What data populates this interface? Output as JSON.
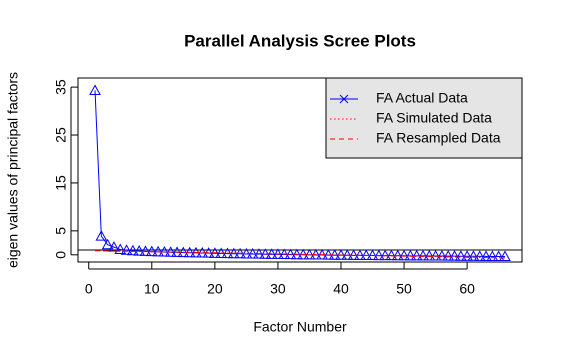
{
  "chart_data": {
    "type": "line",
    "title": "Parallel Analysis Scree Plots",
    "xlabel": "Factor Number",
    "ylabel": "eigen values of principal factors",
    "x": [
      1,
      2,
      3,
      4,
      5,
      6,
      7,
      8,
      9,
      10,
      11,
      12,
      13,
      14,
      15,
      16,
      17,
      18,
      19,
      20,
      21,
      22,
      23,
      24,
      25,
      26,
      27,
      28,
      29,
      30,
      31,
      32,
      33,
      34,
      35,
      36,
      37,
      38,
      39,
      40,
      41,
      42,
      43,
      44,
      45,
      46,
      47,
      48,
      49,
      50,
      51,
      52,
      53,
      54,
      55,
      56,
      57,
      58,
      59,
      60,
      61,
      62,
      63,
      64,
      65,
      66
    ],
    "series": [
      {
        "name": "FA  Actual Data",
        "color": "#0000ff",
        "linestyle": "solid",
        "marker": "triangle",
        "legend_marker": "x",
        "values": [
          34.3,
          3.9,
          2.1,
          1.6,
          1.1,
          0.95,
          0.85,
          0.78,
          0.72,
          0.67,
          0.62,
          0.58,
          0.54,
          0.5,
          0.46,
          0.43,
          0.4,
          0.37,
          0.34,
          0.31,
          0.28,
          0.26,
          0.23,
          0.21,
          0.18,
          0.16,
          0.14,
          0.12,
          0.1,
          0.08,
          0.06,
          0.04,
          0.02,
          0.0,
          -0.02,
          -0.03,
          -0.05,
          -0.06,
          -0.08,
          -0.09,
          -0.1,
          -0.12,
          -0.13,
          -0.14,
          -0.15,
          -0.16,
          -0.17,
          -0.18,
          -0.19,
          -0.2,
          -0.21,
          -0.22,
          -0.23,
          -0.24,
          -0.25,
          -0.26,
          -0.27,
          -0.28,
          -0.29,
          -0.3,
          -0.31,
          -0.32,
          -0.33,
          -0.34,
          -0.35,
          -0.36
        ]
      },
      {
        "name": "FA  Simulated Data",
        "color": "#ff0000",
        "linestyle": "dotted",
        "values": [
          0.85,
          0.83,
          0.8,
          0.78,
          0.76,
          0.74,
          0.71,
          0.69,
          0.67,
          0.64,
          0.62,
          0.6,
          0.57,
          0.55,
          0.53,
          0.51,
          0.48,
          0.46,
          0.44,
          0.41,
          0.39,
          0.37,
          0.34,
          0.32,
          0.3,
          0.28,
          0.25,
          0.23,
          0.21,
          0.18,
          0.16,
          0.14,
          0.11,
          0.09,
          0.07,
          0.05,
          0.02,
          0.0,
          -0.02,
          -0.05,
          -0.07,
          -0.09,
          -0.12,
          -0.14,
          -0.16,
          -0.18,
          -0.21,
          -0.23,
          -0.25,
          -0.28,
          -0.3,
          -0.32,
          -0.35,
          -0.37,
          -0.39,
          -0.41,
          -0.44,
          -0.46,
          -0.48,
          -0.51,
          -0.53,
          -0.55,
          -0.58,
          -0.6,
          -0.62,
          -0.64
        ]
      },
      {
        "name": "FA  Resampled Data",
        "color": "#ff0000",
        "linestyle": "dashed",
        "values": [
          0.88,
          0.84,
          0.81,
          0.79,
          0.76,
          0.74,
          0.72,
          0.69,
          0.67,
          0.65,
          0.62,
          0.6,
          0.58,
          0.55,
          0.53,
          0.51,
          0.49,
          0.46,
          0.44,
          0.42,
          0.39,
          0.37,
          0.35,
          0.33,
          0.3,
          0.28,
          0.26,
          0.23,
          0.21,
          0.19,
          0.17,
          0.14,
          0.12,
          0.1,
          0.07,
          0.05,
          0.03,
          0.01,
          -0.02,
          -0.04,
          -0.06,
          -0.09,
          -0.11,
          -0.13,
          -0.15,
          -0.18,
          -0.2,
          -0.22,
          -0.25,
          -0.27,
          -0.29,
          -0.31,
          -0.34,
          -0.36,
          -0.38,
          -0.41,
          -0.43,
          -0.45,
          -0.47,
          -0.5,
          -0.52,
          -0.54,
          -0.57,
          -0.59,
          -0.61,
          -0.63
        ]
      }
    ],
    "reference_line": 1,
    "xlim": [
      -1.7,
      68.7
    ],
    "ylim": [
      -1.5,
      36.9
    ],
    "xticks": [
      0,
      10,
      20,
      30,
      40,
      50,
      60
    ],
    "yticks": [
      0,
      5,
      15,
      25,
      35
    ],
    "legend": "top-right",
    "legend_background": "#e5e5e5",
    "legend_text_color": "#009900",
    "grid": false
  }
}
